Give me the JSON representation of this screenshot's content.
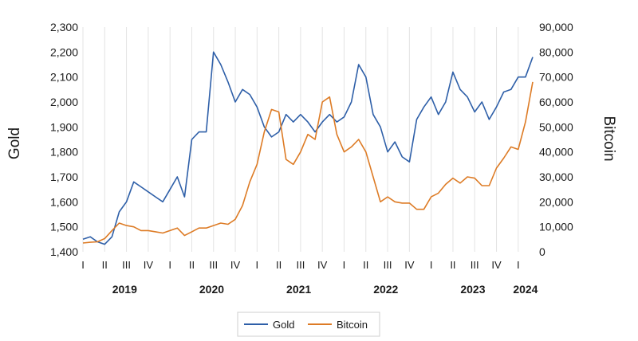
{
  "chart_data": {
    "type": "line",
    "title": "",
    "xlabel": "",
    "left_axis": {
      "label": "Gold",
      "range": [
        1400,
        2300
      ],
      "ticks": [
        "1,400",
        "1,500",
        "1,600",
        "1,700",
        "1,800",
        "1,900",
        "2,000",
        "2,100",
        "2,200",
        "2,300"
      ]
    },
    "right_axis": {
      "label": "Bitcoin",
      "range": [
        0,
        90000
      ],
      "ticks": [
        "0",
        "10,000",
        "20,000",
        "30,000",
        "40,000",
        "50,000",
        "60,000",
        "70,000",
        "80,000",
        "90,000"
      ]
    },
    "x_range": [
      "2019-01",
      "2024-03"
    ],
    "quarter_labels": [
      "I",
      "II",
      "III",
      "IV",
      "I",
      "II",
      "III",
      "IV",
      "I",
      "II",
      "III",
      "IV",
      "I",
      "II",
      "III",
      "IV",
      "I",
      "II",
      "III",
      "IV",
      "I"
    ],
    "year_labels": [
      "2019",
      "2020",
      "2021",
      "2022",
      "2023",
      "2024"
    ],
    "grid": {
      "vertical": true,
      "horizontal": false
    },
    "legend_position": "bottom",
    "series": [
      {
        "name": "Gold",
        "axis": "left",
        "color": "#2e5fa8",
        "x": [
          "2019-01",
          "2019-02",
          "2019-03",
          "2019-04",
          "2019-05",
          "2019-06",
          "2019-07",
          "2019-08",
          "2019-09",
          "2019-10",
          "2019-11",
          "2019-12",
          "2020-01",
          "2020-02",
          "2020-03",
          "2020-04",
          "2020-05",
          "2020-06",
          "2020-07",
          "2020-08",
          "2020-09",
          "2020-10",
          "2020-11",
          "2020-12",
          "2021-01",
          "2021-02",
          "2021-03",
          "2021-04",
          "2021-05",
          "2021-06",
          "2021-07",
          "2021-08",
          "2021-09",
          "2021-10",
          "2021-11",
          "2021-12",
          "2022-01",
          "2022-02",
          "2022-03",
          "2022-04",
          "2022-05",
          "2022-06",
          "2022-07",
          "2022-08",
          "2022-09",
          "2022-10",
          "2022-11",
          "2022-12",
          "2023-01",
          "2023-02",
          "2023-03",
          "2023-04",
          "2023-05",
          "2023-06",
          "2023-07",
          "2023-08",
          "2023-09",
          "2023-10",
          "2023-11",
          "2023-12",
          "2024-01",
          "2024-02",
          "2024-03"
        ],
        "y": [
          1450,
          1460,
          1440,
          1430,
          1460,
          1560,
          1600,
          1680,
          1660,
          1640,
          1620,
          1600,
          1650,
          1700,
          1620,
          1850,
          1880,
          1880,
          2200,
          2150,
          2080,
          2000,
          2050,
          2030,
          1980,
          1900,
          1860,
          1880,
          1950,
          1920,
          1950,
          1920,
          1880,
          1920,
          1950,
          1920,
          1940,
          2000,
          2150,
          2100,
          1950,
          1900,
          1800,
          1840,
          1780,
          1760,
          1930,
          1980,
          2020,
          1950,
          2000,
          2120,
          2050,
          2020,
          1960,
          2000,
          1930,
          1980,
          2040,
          2050,
          2100,
          2100,
          2180
        ]
      },
      {
        "name": "Bitcoin",
        "axis": "right",
        "color": "#dd7b25",
        "x": [
          "2019-01",
          "2019-02",
          "2019-03",
          "2019-04",
          "2019-05",
          "2019-06",
          "2019-07",
          "2019-08",
          "2019-09",
          "2019-10",
          "2019-11",
          "2019-12",
          "2020-01",
          "2020-02",
          "2020-03",
          "2020-04",
          "2020-05",
          "2020-06",
          "2020-07",
          "2020-08",
          "2020-09",
          "2020-10",
          "2020-11",
          "2020-12",
          "2021-01",
          "2021-02",
          "2021-03",
          "2021-04",
          "2021-05",
          "2021-06",
          "2021-07",
          "2021-08",
          "2021-09",
          "2021-10",
          "2021-11",
          "2021-12",
          "2022-01",
          "2022-02",
          "2022-03",
          "2022-04",
          "2022-05",
          "2022-06",
          "2022-07",
          "2022-08",
          "2022-09",
          "2022-10",
          "2022-11",
          "2022-12",
          "2023-01",
          "2023-02",
          "2023-03",
          "2023-04",
          "2023-05",
          "2023-06",
          "2023-07",
          "2023-08",
          "2023-09",
          "2023-10",
          "2023-11",
          "2023-12",
          "2024-01",
          "2024-02",
          "2024-03"
        ],
        "y": [
          3500,
          3800,
          4000,
          5300,
          8500,
          11500,
          10500,
          10000,
          8500,
          8500,
          8000,
          7500,
          8500,
          9500,
          6500,
          8000,
          9500,
          9500,
          10500,
          11500,
          11000,
          13000,
          18500,
          28000,
          35000,
          48000,
          57000,
          56000,
          37000,
          35000,
          40000,
          47000,
          45000,
          60000,
          62000,
          47000,
          40000,
          42000,
          45000,
          40000,
          30000,
          20000,
          22000,
          20000,
          19500,
          19500,
          17000,
          17000,
          22000,
          23500,
          27000,
          29500,
          27500,
          30000,
          29500,
          26500,
          26500,
          33500,
          37500,
          42000,
          41000,
          52000,
          68000
        ]
      }
    ]
  }
}
